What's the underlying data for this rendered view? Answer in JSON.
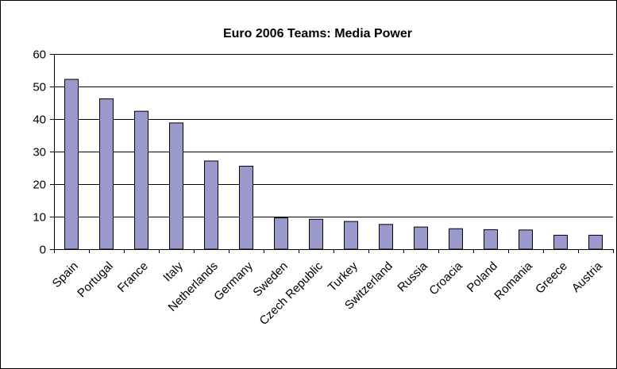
{
  "chart_data": {
    "type": "bar",
    "title": "Euro 2006 Teams: Media Power",
    "xlabel": "",
    "ylabel": "",
    "categories": [
      "Spain",
      "Portugal",
      "France",
      "Italy",
      "Netherlands",
      "Germany",
      "Sweden",
      "Czech Republic",
      "Turkey",
      "Switzerland",
      "Russia",
      "Croacia",
      "Poland",
      "Romania",
      "Greece",
      "Austria"
    ],
    "values": [
      52.2,
      46.2,
      42.4,
      38.8,
      27.1,
      25.5,
      9.6,
      9.2,
      8.5,
      7.6,
      6.8,
      6.3,
      6.0,
      5.9,
      4.3,
      4.3
    ],
    "ylim": [
      0,
      60
    ],
    "yticks": [
      0,
      10,
      20,
      30,
      40,
      50,
      60
    ],
    "ytick_labels": [
      "0",
      "10",
      "20",
      "30",
      "40",
      "50",
      "60"
    ],
    "grid": "horizontal",
    "legend": "none",
    "bar_color": "#9999cc",
    "bar_edge_color": "#000000",
    "gridline_color": "#000000",
    "frame_color": "#000000"
  }
}
